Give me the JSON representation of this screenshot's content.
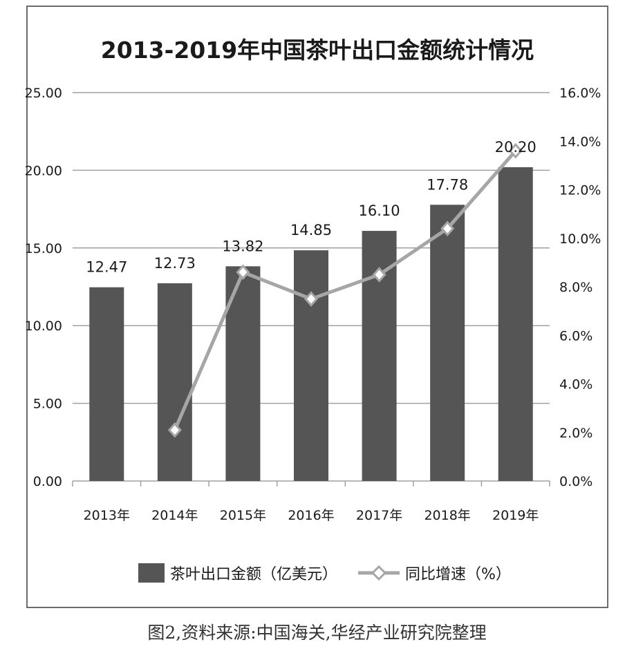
{
  "caption": "图2,资料来源:中国海关,华经产业研究院整理",
  "colors": {
    "bar": "#555555",
    "line": "#a6a6a6",
    "grid": "#a0a0a0",
    "text": "#1a1a1a"
  },
  "chart_data": {
    "type": "bar",
    "title": "2013-2019年中国茶叶出口金额统计情况",
    "categories": [
      "2013年",
      "2014年",
      "2015年",
      "2016年",
      "2017年",
      "2018年",
      "2019年"
    ],
    "series": [
      {
        "name": "茶叶出口金额（亿美元）",
        "type": "bar",
        "axis": "left",
        "values": [
          12.47,
          12.73,
          13.82,
          14.85,
          16.1,
          17.78,
          20.2
        ],
        "labels": [
          "12.47",
          "12.73",
          "13.82",
          "14.85",
          "16.10",
          "17.78",
          "20.20"
        ]
      },
      {
        "name": "同比增速（%）",
        "type": "line",
        "axis": "right",
        "values": [
          null,
          2.1,
          8.6,
          7.5,
          8.5,
          10.4,
          13.6
        ]
      }
    ],
    "y_left": {
      "min": 0,
      "max": 25,
      "ticks": [
        "0.00",
        "5.00",
        "10.00",
        "15.00",
        "20.00",
        "25.00"
      ]
    },
    "y_right": {
      "min": 0,
      "max": 16,
      "ticks": [
        "0.0%",
        "2.0%",
        "4.0%",
        "6.0%",
        "8.0%",
        "10.0%",
        "12.0%",
        "14.0%",
        "16.0%"
      ]
    },
    "grid": true,
    "legend_position": "bottom"
  }
}
